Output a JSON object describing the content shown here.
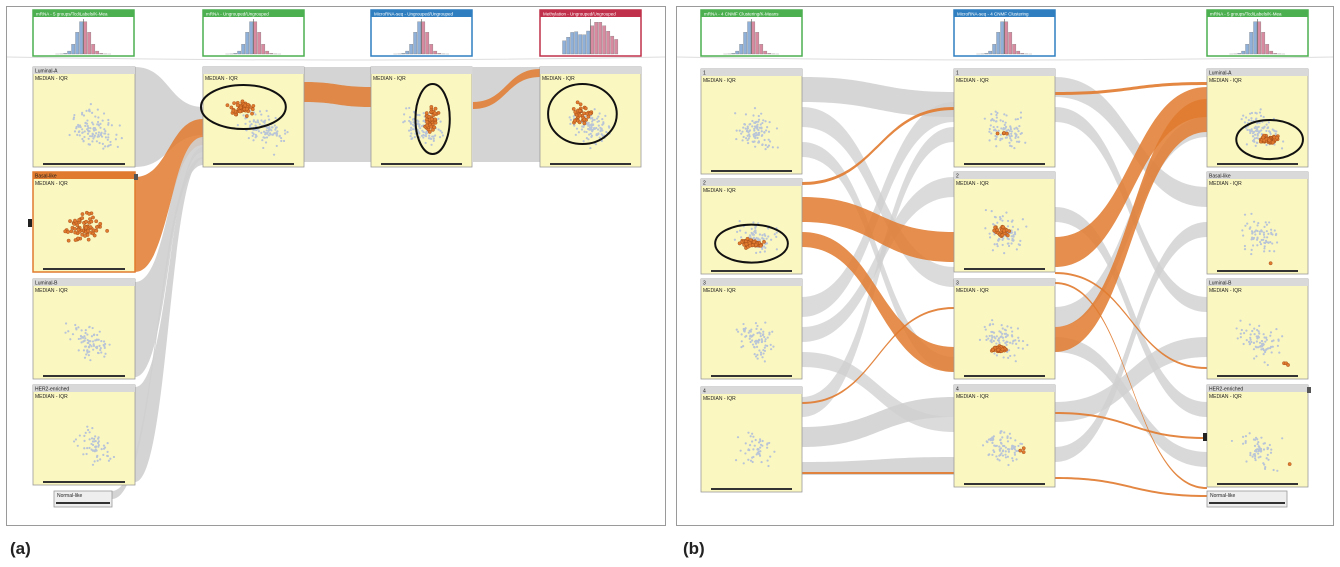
{
  "figure": {
    "caption_a": "(a)",
    "caption_b": "(b)"
  },
  "colors": {
    "highlight": "#e07a2e",
    "path_gray": "#cfcfcf",
    "brick_bg": "#fbf7c0",
    "brick_header": "#d9d9d9",
    "green_border": "#4caf50",
    "blue_border": "#2f7fc0",
    "red_border": "#c0304a",
    "point_gray": "#b8c4d8"
  },
  "panel_a": {
    "headers": [
      {
        "label": "mRNA - 5 groups/TcdiLabels/K-Mea",
        "color": "green"
      },
      {
        "label": "mRNA - Ungrouped/Ungrouped",
        "color": "green"
      },
      {
        "label": "MicroRNA-seq - Ungrouped/Ungrouped",
        "color": "blue"
      },
      {
        "label": "Methylation - Ungrouped/Ungrouped",
        "color": "red"
      }
    ],
    "bricks_left": [
      {
        "label": "Luminal-A",
        "stat": "MEDIAN - IQR"
      },
      {
        "label": "Basal-like",
        "stat": "MEDIAN - IQR"
      },
      {
        "label": "Luminal-B",
        "stat": "MEDIAN - IQR"
      },
      {
        "label": "HER2-enriched",
        "stat": "MEDIAN - IQR"
      },
      {
        "label": "Normal-like",
        "stat": ""
      }
    ],
    "bricks_top": [
      {
        "label": "MEDIAN - IQR"
      },
      {
        "label": "MEDIAN - IQR"
      },
      {
        "label": "MEDIAN - IQR"
      }
    ]
  },
  "panel_b": {
    "headers": [
      {
        "label": "mRNA - 4 CNMF Clustering/K-Means",
        "color": "green"
      },
      {
        "label": "MicroRNA-seq - 4 CNMF Clustering",
        "color": "blue"
      },
      {
        "label": "mRNA - 5 groups/TcdiLabels/K-Mea",
        "color": "green"
      }
    ],
    "col1": [
      {
        "label": "1",
        "stat": "MEDIAN - IQR"
      },
      {
        "label": "2",
        "stat": "MEDIAN - IQR"
      },
      {
        "label": "3",
        "stat": "MEDIAN - IQR"
      },
      {
        "label": "4",
        "stat": "MEDIAN - IQR"
      }
    ],
    "col2": [
      {
        "label": "1",
        "stat": "MEDIAN - IQR"
      },
      {
        "label": "2",
        "stat": "MEDIAN - IQR"
      },
      {
        "label": "3",
        "stat": "MEDIAN - IQR"
      },
      {
        "label": "4",
        "stat": "MEDIAN - IQR"
      }
    ],
    "col3": [
      {
        "label": "Luminal-A",
        "stat": "MEDIAN - IQR"
      },
      {
        "label": "Basal-like",
        "stat": "MEDIAN - IQR"
      },
      {
        "label": "Luminal-B",
        "stat": "MEDIAN - IQR"
      },
      {
        "label": "HER2-enriched",
        "stat": "MEDIAN - IQR"
      },
      {
        "label": "Normal-like",
        "stat": ""
      }
    ]
  }
}
